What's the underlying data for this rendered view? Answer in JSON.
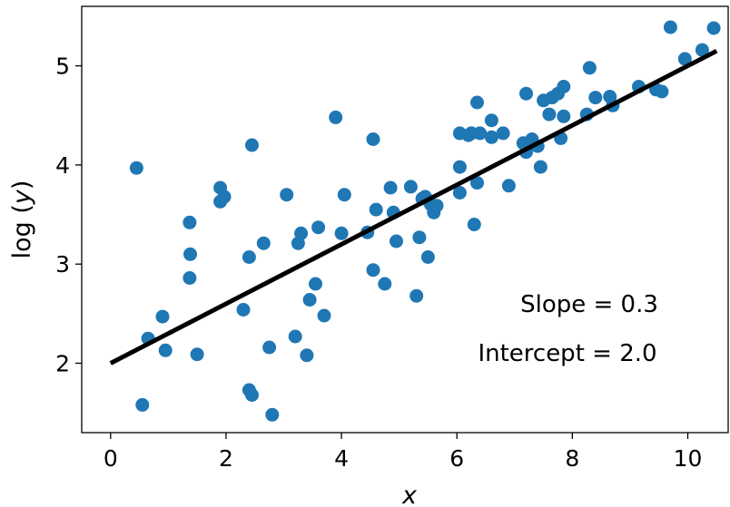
{
  "chart_data": {
    "type": "scatter",
    "xlabel": "x",
    "ylabel_prefix": "log",
    "ylabel_var": "y",
    "xlim": [
      -0.5,
      10.7
    ],
    "ylim": [
      1.3,
      5.6
    ],
    "xticks": [
      0,
      2,
      4,
      6,
      8,
      10
    ],
    "yticks": [
      2,
      3,
      4,
      5
    ],
    "grid": false,
    "colors": {
      "points": "#1f77b4",
      "fit_line": "#000000"
    },
    "fit_line": {
      "slope": 0.3,
      "intercept": 2.0,
      "x_start": 0,
      "x_end": 10.5
    },
    "annotations": {
      "slope": "Slope = 0.3",
      "intercept": "Intercept = 2.0"
    },
    "series": [
      {
        "points": [
          [
            0.45,
            3.97
          ],
          [
            0.55,
            1.58
          ],
          [
            0.65,
            2.25
          ],
          [
            0.9,
            2.47
          ],
          [
            0.95,
            2.13
          ],
          [
            1.37,
            3.42
          ],
          [
            1.38,
            3.1
          ],
          [
            1.37,
            2.86
          ],
          [
            1.5,
            2.09
          ],
          [
            1.9,
            3.77
          ],
          [
            1.9,
            3.63
          ],
          [
            1.97,
            3.68
          ],
          [
            2.3,
            2.54
          ],
          [
            2.4,
            1.73
          ],
          [
            2.4,
            3.07
          ],
          [
            2.45,
            1.68
          ],
          [
            2.45,
            4.2
          ],
          [
            2.65,
            3.21
          ],
          [
            2.75,
            2.16
          ],
          [
            2.8,
            1.48
          ],
          [
            3.05,
            3.7
          ],
          [
            3.2,
            2.27
          ],
          [
            3.25,
            3.21
          ],
          [
            3.3,
            3.31
          ],
          [
            3.4,
            2.08
          ],
          [
            3.45,
            2.64
          ],
          [
            3.55,
            2.8
          ],
          [
            3.6,
            3.37
          ],
          [
            3.7,
            2.48
          ],
          [
            3.9,
            4.48
          ],
          [
            4.0,
            3.31
          ],
          [
            4.05,
            3.7
          ],
          [
            4.45,
            3.32
          ],
          [
            4.55,
            2.94
          ],
          [
            4.55,
            4.26
          ],
          [
            4.6,
            3.55
          ],
          [
            4.75,
            2.8
          ],
          [
            4.85,
            3.77
          ],
          [
            4.9,
            3.52
          ],
          [
            4.95,
            3.23
          ],
          [
            5.2,
            3.78
          ],
          [
            5.3,
            2.68
          ],
          [
            5.35,
            3.27
          ],
          [
            5.4,
            3.66
          ],
          [
            5.45,
            3.68
          ],
          [
            5.5,
            3.07
          ],
          [
            5.55,
            3.6
          ],
          [
            5.6,
            3.52
          ],
          [
            5.65,
            3.59
          ],
          [
            6.05,
            3.72
          ],
          [
            6.05,
            3.98
          ],
          [
            6.05,
            4.32
          ],
          [
            6.2,
            4.3
          ],
          [
            6.25,
            4.32
          ],
          [
            6.3,
            3.4
          ],
          [
            6.35,
            3.82
          ],
          [
            6.35,
            4.63
          ],
          [
            6.4,
            4.32
          ],
          [
            6.6,
            4.45
          ],
          [
            6.6,
            4.28
          ],
          [
            6.8,
            4.32
          ],
          [
            6.9,
            3.79
          ],
          [
            7.15,
            4.22
          ],
          [
            7.2,
            4.72
          ],
          [
            7.2,
            4.13
          ],
          [
            7.3,
            4.26
          ],
          [
            7.4,
            4.19
          ],
          [
            7.45,
            3.98
          ],
          [
            7.5,
            4.65
          ],
          [
            7.6,
            4.51
          ],
          [
            7.65,
            4.68
          ],
          [
            7.75,
            4.72
          ],
          [
            7.8,
            4.27
          ],
          [
            7.85,
            4.79
          ],
          [
            7.85,
            4.49
          ],
          [
            8.25,
            4.51
          ],
          [
            8.3,
            4.98
          ],
          [
            8.4,
            4.68
          ],
          [
            8.65,
            4.69
          ],
          [
            8.7,
            4.6
          ],
          [
            9.15,
            4.79
          ],
          [
            9.45,
            4.76
          ],
          [
            9.55,
            4.74
          ],
          [
            9.7,
            5.39
          ],
          [
            9.95,
            5.07
          ],
          [
            10.25,
            5.16
          ],
          [
            10.45,
            5.38
          ]
        ]
      }
    ]
  }
}
